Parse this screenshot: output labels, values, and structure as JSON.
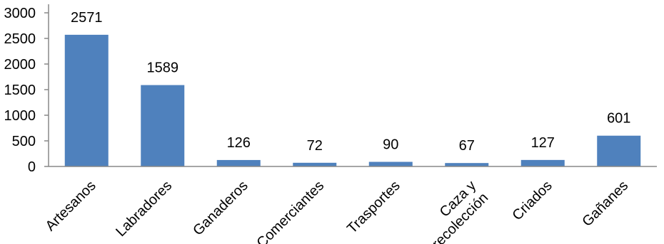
{
  "chart_data": {
    "type": "bar",
    "categories": [
      "Artesanos",
      "Labradores",
      "Ganaderos",
      "Comerciantes",
      "Trasportes",
      "Caza y\nrecolección",
      "Criados",
      "Gañanes"
    ],
    "values": [
      2571,
      1589,
      126,
      72,
      90,
      67,
      127,
      601
    ],
    "data_labels": [
      "2571",
      "1589",
      "126",
      "72",
      "90",
      "67",
      "127",
      "601"
    ],
    "yticks": [
      "0",
      "500",
      "1000",
      "1500",
      "2000",
      "2500",
      "3000"
    ],
    "ylim": [
      0,
      3000
    ],
    "grid": false,
    "legend": "none",
    "bar_color": "#4f81bd",
    "axis_color": "#888888"
  }
}
